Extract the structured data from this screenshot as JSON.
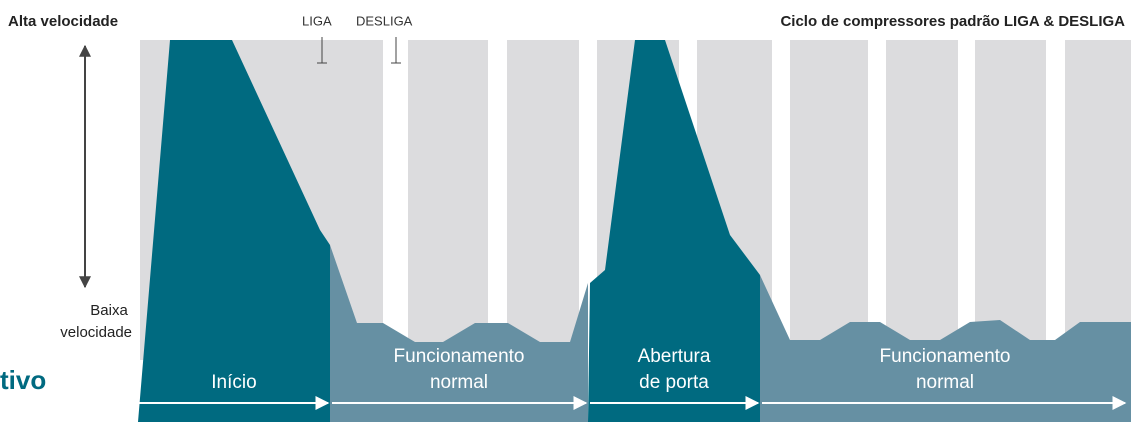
{
  "diagram": {
    "title": "Ciclo de compressores padrão LIGA & DESLIGA",
    "high_label": "Alta velocidade",
    "low_label": [
      "Baixa",
      "velocidade"
    ],
    "on_label": "LIGA",
    "off_label": "DESLIGA",
    "side_title": "tivo",
    "phases": [
      {
        "lines": [
          "Início"
        ]
      },
      {
        "lines": [
          "Funcionamento",
          "normal"
        ]
      },
      {
        "lines": [
          "Abertura",
          "de porta"
        ]
      },
      {
        "lines": [
          "Funcionamento",
          "normal"
        ]
      }
    ]
  }
}
